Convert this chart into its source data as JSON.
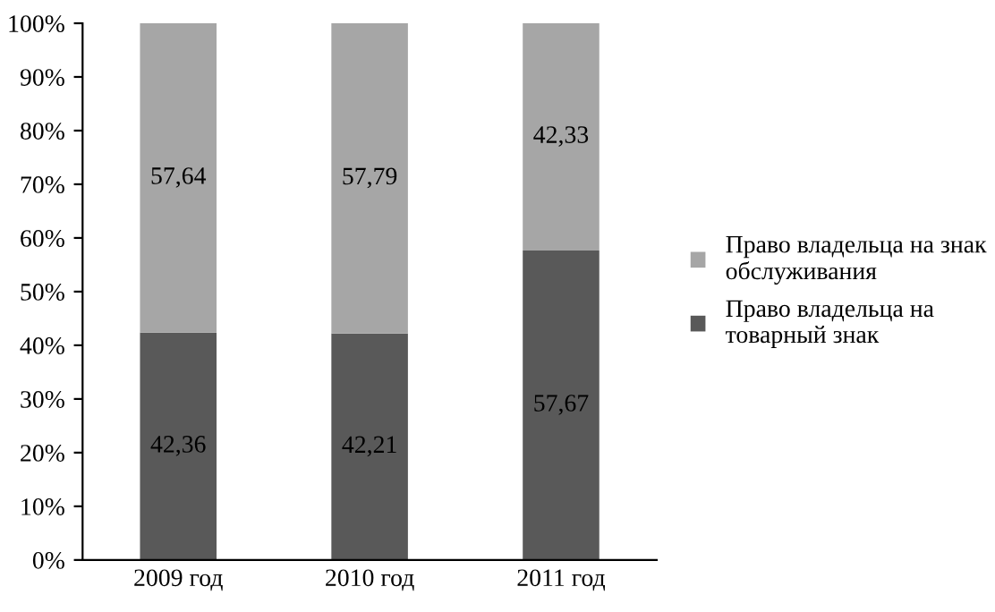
{
  "chart_data": {
    "type": "bar",
    "stacked": true,
    "categories": [
      "2009 год",
      "2010 год",
      "2011 год"
    ],
    "series": [
      {
        "name": "Право владельца на\nтоварный знак",
        "color": "#595959",
        "values": [
          42.36,
          42.21,
          57.67
        ],
        "value_labels": [
          "42,36",
          "42,21",
          "57,67"
        ]
      },
      {
        "name": "Право владельца на знак\nобслуживания",
        "color": "#a6a6a6",
        "values": [
          57.64,
          57.79,
          42.33
        ],
        "value_labels": [
          "57,64",
          "57,79",
          "42,33"
        ]
      }
    ],
    "ylim": [
      0,
      100
    ],
    "yticks": [
      {
        "value": 0,
        "label": "0%"
      },
      {
        "value": 10,
        "label": "10%"
      },
      {
        "value": 20,
        "label": "20%"
      },
      {
        "value": 30,
        "label": "30%"
      },
      {
        "value": 40,
        "label": "40%"
      },
      {
        "value": 50,
        "label": "50%"
      },
      {
        "value": 60,
        "label": "60%"
      },
      {
        "value": 70,
        "label": "70%"
      },
      {
        "value": 80,
        "label": "80%"
      },
      {
        "value": 90,
        "label": "90%"
      },
      {
        "value": 100,
        "label": "100%"
      }
    ],
    "grid": false,
    "legend": "right"
  }
}
